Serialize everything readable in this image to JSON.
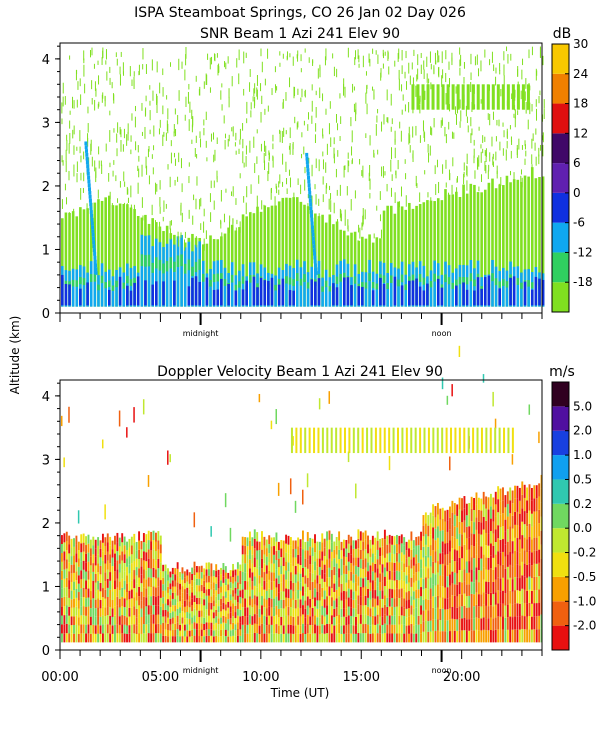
{
  "figure": {
    "title_line1": "ISPA Steamboat Springs, CO   26 Jan 02 Day 026",
    "ylabel": "Altitude (km)",
    "xlabel": "Time (UT)"
  },
  "chart_data": [
    {
      "type": "heatmap",
      "title": "SNR Beam 1 Azi 241 Elev 90",
      "ylabel": "Altitude (km)",
      "xlabel": "",
      "x_range_hours": [
        0,
        24
      ],
      "ylim": [
        0,
        4.25
      ],
      "y_ticks": [
        "0",
        "1",
        "2",
        "3",
        "4"
      ],
      "x_annotations": [
        {
          "label": "midnight",
          "hour": 7.0
        },
        {
          "label": "noon",
          "hour": 19.0
        }
      ],
      "colorbar": {
        "unit": "dB",
        "levels": [
          "-18",
          "-12",
          "-6",
          "0",
          "6",
          "12",
          "18",
          "24",
          "30"
        ],
        "colors": [
          "#80e020",
          "#30d060",
          "#10a8f0",
          "#1030e0",
          "#6020b0",
          "#400868",
          "#e01010",
          "#f08000",
          "#f8c800"
        ]
      }
    },
    {
      "type": "heatmap",
      "title": "Doppler Velocity Beam 1 Azi 241 Elev 90",
      "ylabel": "Altitude (km)",
      "xlabel": "Time (UT)",
      "x_range_hours": [
        0,
        24
      ],
      "ylim": [
        0,
        4.25
      ],
      "y_ticks": [
        "0",
        "1",
        "2",
        "3",
        "4"
      ],
      "x_ticks": [
        {
          "label": "00:00",
          "hour": 0
        },
        {
          "label": "05:00",
          "hour": 5
        },
        {
          "label": "10:00",
          "hour": 10
        },
        {
          "label": "15:00",
          "hour": 15
        },
        {
          "label": "20:00",
          "hour": 20
        }
      ],
      "x_annotations": [
        {
          "label": "midnight",
          "hour": 7.0
        },
        {
          "label": "noon",
          "hour": 19.0
        }
      ],
      "colorbar": {
        "unit": "m/s",
        "levels": [
          "-2.0",
          "-1.0",
          "-0.5",
          "-0.2",
          "0.0",
          "0.2",
          "0.5",
          "1.0",
          "2.0",
          "5.0"
        ],
        "colors": [
          "#e81010",
          "#f06010",
          "#f8a000",
          "#f0e010",
          "#c0e830",
          "#70d860",
          "#30c8b0",
          "#10a0f0",
          "#1840e0",
          "#5010a0",
          "#300020"
        ]
      }
    }
  ]
}
